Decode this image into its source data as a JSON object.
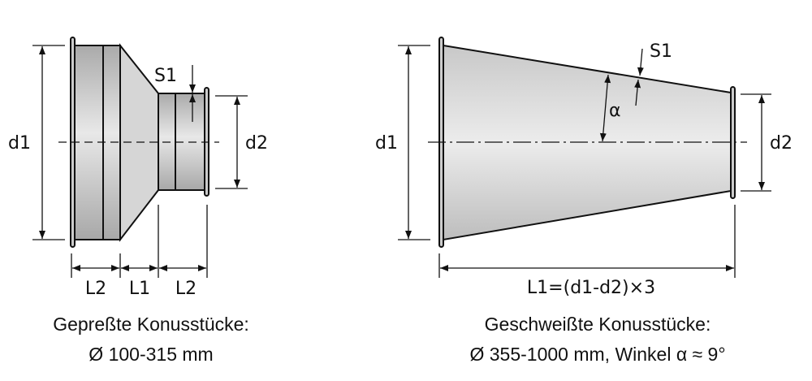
{
  "left_drawing": {
    "labels": {
      "d1": "d1",
      "d2": "d2",
      "s1": "S1",
      "l2_left": "L2",
      "l1": "L1",
      "l2_right": "L2"
    },
    "caption_line1": "Gepreßte Konusstücke:",
    "caption_line2": "Ø 100-315 mm"
  },
  "right_drawing": {
    "labels": {
      "d1": "d1",
      "d2": "d2",
      "s1": "S1",
      "alpha": "α",
      "l1": "L1=(d1-d2)×3"
    },
    "caption_line1": "Geschweißte Konusstücke:",
    "caption_line2": "Ø 355-1000 mm, Winkel α ≈ 9°"
  },
  "colors": {
    "metal_light": "#e6e6e6",
    "metal_dark": "#b4b4b4",
    "line": "#111111"
  }
}
